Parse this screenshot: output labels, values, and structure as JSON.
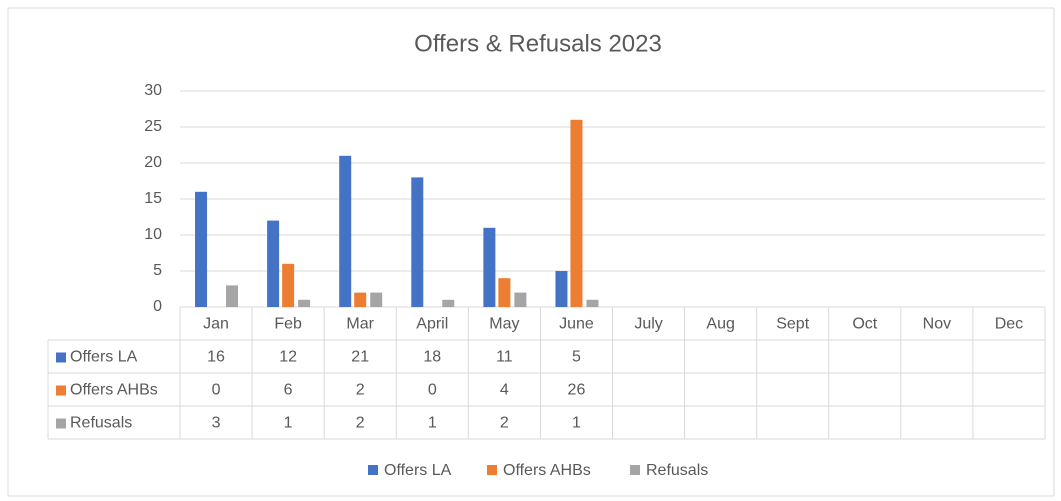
{
  "chart_data": {
    "type": "bar",
    "title": "Offers & Refusals 2023",
    "categories": [
      "Jan",
      "Feb",
      "Mar",
      "April",
      "May",
      "June",
      "July",
      "Aug",
      "Sept",
      "Oct",
      "Nov",
      "Dec"
    ],
    "series": [
      {
        "name": "Offers LA",
        "color": "#4472c4",
        "values": [
          16,
          12,
          21,
          18,
          11,
          5,
          null,
          null,
          null,
          null,
          null,
          null
        ]
      },
      {
        "name": "Offers AHBs",
        "color": "#ed7d31",
        "values": [
          0,
          6,
          2,
          0,
          4,
          26,
          null,
          null,
          null,
          null,
          null,
          null
        ]
      },
      {
        "name": "Refusals",
        "color": "#a5a5a5",
        "values": [
          3,
          1,
          2,
          1,
          2,
          1,
          null,
          null,
          null,
          null,
          null,
          null
        ]
      }
    ],
    "ylim": [
      0,
      30
    ],
    "yticks": [
      0,
      5,
      10,
      15,
      20,
      25,
      30
    ],
    "grid": true,
    "legend": "bottom",
    "data_table": true
  }
}
